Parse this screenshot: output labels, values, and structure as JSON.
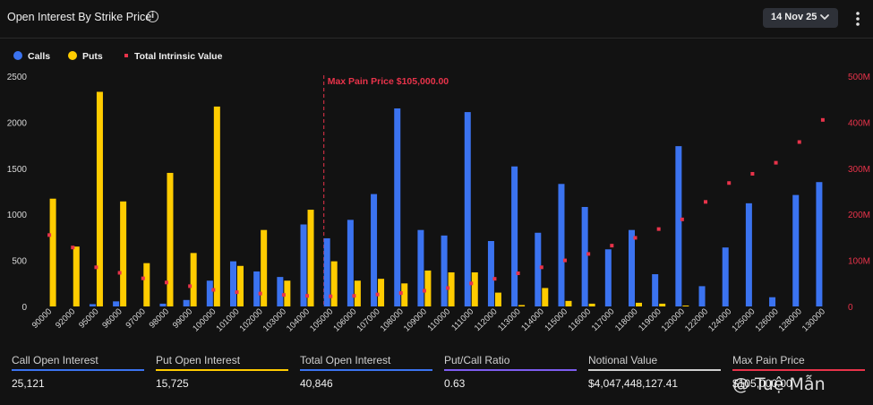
{
  "header": {
    "title": "Open Interest By Strike Price",
    "date_label": "14 Nov 25"
  },
  "colors": {
    "calls": "#3b73f0",
    "puts": "#ffcc00",
    "tiv": "#e8334a",
    "put_call_line": "#7d5cf0",
    "notional_line": "#cfcfcf",
    "max_pain_line": "#e8334a"
  },
  "legend": {
    "calls": "Calls",
    "puts": "Puts",
    "tiv": "Total Intrinsic Value"
  },
  "chart_data": {
    "type": "bar",
    "categories": [
      "90000",
      "92000",
      "95000",
      "96000",
      "97000",
      "98000",
      "99000",
      "100000",
      "101000",
      "102000",
      "103000",
      "104000",
      "105000",
      "106000",
      "107000",
      "108000",
      "109000",
      "110000",
      "111000",
      "112000",
      "113000",
      "114000",
      "115000",
      "116000",
      "117000",
      "118000",
      "119000",
      "120000",
      "122000",
      "124000",
      "125000",
      "126000",
      "128000",
      "130000"
    ],
    "series": [
      {
        "name": "Calls",
        "axis": "left",
        "values": [
          0,
          0,
          25,
          55,
          0,
          30,
          70,
          280,
          490,
          380,
          320,
          890,
          740,
          940,
          1220,
          2150,
          830,
          770,
          2110,
          710,
          1520,
          800,
          1330,
          1080,
          620,
          830,
          350,
          1740,
          220,
          640,
          1120,
          100,
          1210,
          1350
        ]
      },
      {
        "name": "Puts",
        "axis": "left",
        "values": [
          1170,
          650,
          2330,
          1140,
          470,
          1450,
          580,
          2170,
          440,
          830,
          280,
          1050,
          490,
          280,
          300,
          250,
          390,
          370,
          370,
          150,
          15,
          200,
          60,
          30,
          0,
          40,
          30,
          10,
          0,
          0,
          0,
          0,
          0,
          0
        ]
      },
      {
        "name": "Total Intrinsic Value",
        "axis": "right",
        "type": "scatter",
        "values": [
          155000000,
          128000000,
          85000000,
          73000000,
          61000000,
          52000000,
          44000000,
          36000000,
          31000000,
          28000000,
          25000000,
          23000000,
          22000000,
          23000000,
          26000000,
          29000000,
          34000000,
          40000000,
          50000000,
          60000000,
          72000000,
          85000000,
          100000000,
          114000000,
          132000000,
          149000000,
          168000000,
          189000000,
          227000000,
          268000000,
          288000000,
          312000000,
          357000000,
          405000000
        ]
      }
    ],
    "y_left": {
      "ticks": [
        "0",
        "500",
        "1000",
        "1500",
        "2000",
        "2500"
      ],
      "ylim": [
        0,
        2500
      ]
    },
    "y_right": {
      "ticks": [
        "0",
        "100M",
        "200M",
        "300M",
        "400M",
        "500M"
      ],
      "ylim": [
        0,
        500000000
      ]
    },
    "annotation": {
      "text": "Max Pain Price $105,000.00",
      "strike": "105000"
    },
    "grid": false
  },
  "stats": [
    {
      "label": "Call Open Interest",
      "value": "25,121"
    },
    {
      "label": "Put Open Interest",
      "value": "15,725"
    },
    {
      "label": "Total Open Interest",
      "value": "40,846"
    },
    {
      "label": "Put/Call Ratio",
      "value": "0.63"
    },
    {
      "label": "Notional Value",
      "value": "$4,047,448,127.41"
    },
    {
      "label": "Max Pain Price",
      "value": "$105,000.00"
    }
  ],
  "watermark": "@ Tuệ Mẫn"
}
